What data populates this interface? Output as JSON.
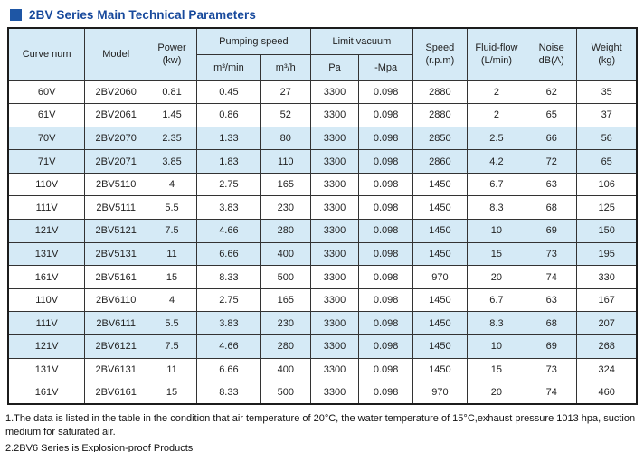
{
  "title": "2BV Series Main Technical Parameters",
  "colors": {
    "accent_blue": "#1e56a5",
    "title_text": "#17499c",
    "row_highlight": "#d5eaf6",
    "header_bg": "#d5eaf6",
    "border": "#333333"
  },
  "table": {
    "header": {
      "curve_num": "Curve num",
      "model": "Model",
      "power": "Power",
      "power_unit": "(kw)",
      "pumping_speed": "Pumping speed",
      "pumping_sub_min": "m³/min",
      "pumping_sub_h": "m³/h",
      "limit_vacuum": "Limit vacuum",
      "vacuum_sub_pa": "Pa",
      "vacuum_sub_mpa": "-Mpa",
      "speed": "Speed",
      "speed_unit": "(r.p.m)",
      "fluid_flow": "Fluid-flow",
      "fluid_unit": "(L/min)",
      "noise": "Noise",
      "noise_unit": "dB(A)",
      "weight": "Weight",
      "weight_unit": "(kg)"
    },
    "rows": [
      [
        "60V",
        "2BV2060",
        "0.81",
        "0.45",
        "27",
        "3300",
        "0.098",
        "2880",
        "2",
        "62",
        "35"
      ],
      [
        "61V",
        "2BV2061",
        "1.45",
        "0.86",
        "52",
        "3300",
        "0.098",
        "2880",
        "2",
        "65",
        "37"
      ],
      [
        "70V",
        "2BV2070",
        "2.35",
        "1.33",
        "80",
        "3300",
        "0.098",
        "2850",
        "2.5",
        "66",
        "56"
      ],
      [
        "71V",
        "2BV2071",
        "3.85",
        "1.83",
        "110",
        "3300",
        "0.098",
        "2860",
        "4.2",
        "72",
        "65"
      ],
      [
        "110V",
        "2BV5110",
        "4",
        "2.75",
        "165",
        "3300",
        "0.098",
        "1450",
        "6.7",
        "63",
        "106"
      ],
      [
        "111V",
        "2BV5111",
        "5.5",
        "3.83",
        "230",
        "3300",
        "0.098",
        "1450",
        "8.3",
        "68",
        "125"
      ],
      [
        "121V",
        "2BV5121",
        "7.5",
        "4.66",
        "280",
        "3300",
        "0.098",
        "1450",
        "10",
        "69",
        "150"
      ],
      [
        "131V",
        "2BV5131",
        "11",
        "6.66",
        "400",
        "3300",
        "0.098",
        "1450",
        "15",
        "73",
        "195"
      ],
      [
        "161V",
        "2BV5161",
        "15",
        "8.33",
        "500",
        "3300",
        "0.098",
        "970",
        "20",
        "74",
        "330"
      ],
      [
        "110V",
        "2BV6110",
        "4",
        "2.75",
        "165",
        "3300",
        "0.098",
        "1450",
        "6.7",
        "63",
        "167"
      ],
      [
        "111V",
        "2BV6111",
        "5.5",
        "3.83",
        "230",
        "3300",
        "0.098",
        "1450",
        "8.3",
        "68",
        "207"
      ],
      [
        "121V",
        "2BV6121",
        "7.5",
        "4.66",
        "280",
        "3300",
        "0.098",
        "1450",
        "10",
        "69",
        "268"
      ],
      [
        "131V",
        "2BV6131",
        "11",
        "6.66",
        "400",
        "3300",
        "0.098",
        "1450",
        "15",
        "73",
        "324"
      ],
      [
        "161V",
        "2BV6161",
        "15",
        "8.33",
        "500",
        "3300",
        "0.098",
        "970",
        "20",
        "74",
        "460"
      ]
    ],
    "row_highlight": [
      false,
      false,
      true,
      true,
      false,
      false,
      true,
      true,
      false,
      false,
      true,
      true,
      false,
      false
    ]
  },
  "notes": [
    "1.The data is listed in the table in the condition that air temperature of 20°C, the water temperature of 15°C,exhaust pressure 1013 hpa, suction medium for saturated air.",
    "2.2BV6 Series is Explosion-proof Products"
  ]
}
